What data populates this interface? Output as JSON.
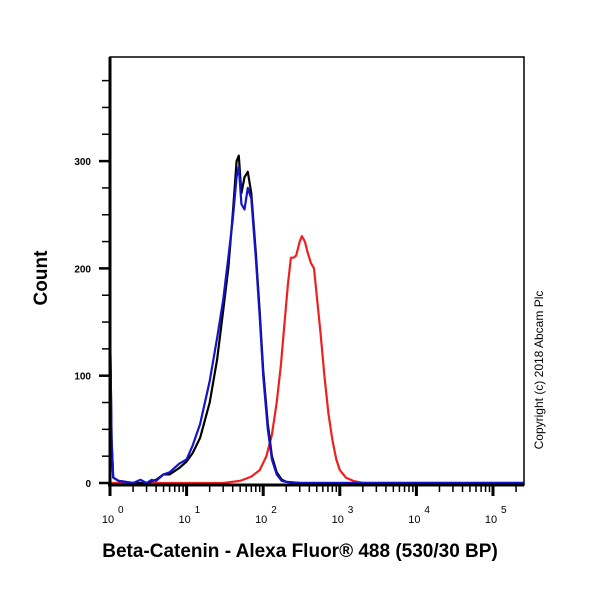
{
  "chart_data": {
    "type": "line",
    "title": "",
    "xlabel": "Beta-Catenin - Alexa Fluor® 488 (530/30 BP)",
    "ylabel": "Count",
    "xscale": "log",
    "xlim": [
      1,
      250000
    ],
    "ylim": [
      0,
      400
    ],
    "x_ticks": [
      {
        "value": 1,
        "label_base": "10",
        "label_exp": "0"
      },
      {
        "value": 10,
        "label_base": "10",
        "label_exp": "1"
      },
      {
        "value": 100,
        "label_base": "10",
        "label_exp": "2"
      },
      {
        "value": 1000,
        "label_base": "10",
        "label_exp": "3"
      },
      {
        "value": 10000,
        "label_base": "10",
        "label_exp": "4"
      },
      {
        "value": 100000,
        "label_base": "10",
        "label_exp": "5"
      }
    ],
    "y_ticks": [
      {
        "value": 0,
        "label": "0"
      },
      {
        "value": 100,
        "label": "100"
      },
      {
        "value": 200,
        "label": "200"
      },
      {
        "value": 300,
        "label": "300"
      }
    ],
    "grid": false,
    "legend": null,
    "annotation": "Copyright (c) 2018 Abcam Plc",
    "series": [
      {
        "name": "black",
        "color": "#000000",
        "points": [
          [
            1.0,
            150
          ],
          [
            1.05,
            40
          ],
          [
            1.1,
            5
          ],
          [
            1.3,
            2
          ],
          [
            2,
            0
          ],
          [
            3,
            0
          ],
          [
            4,
            3
          ],
          [
            5,
            8
          ],
          [
            6,
            8
          ],
          [
            8,
            14
          ],
          [
            10,
            20
          ],
          [
            12,
            28
          ],
          [
            15,
            42
          ],
          [
            20,
            75
          ],
          [
            25,
            115
          ],
          [
            30,
            160
          ],
          [
            35,
            200
          ],
          [
            40,
            250
          ],
          [
            45,
            300
          ],
          [
            48,
            305
          ],
          [
            52,
            270
          ],
          [
            57,
            285
          ],
          [
            63,
            290
          ],
          [
            70,
            270
          ],
          [
            80,
            215
          ],
          [
            90,
            160
          ],
          [
            100,
            105
          ],
          [
            115,
            55
          ],
          [
            130,
            25
          ],
          [
            150,
            10
          ],
          [
            175,
            3
          ],
          [
            200,
            1
          ],
          [
            300,
            0
          ],
          [
            1000,
            0
          ],
          [
            10000,
            0
          ],
          [
            250000,
            0
          ]
        ]
      },
      {
        "name": "blue",
        "color": "#1414c8",
        "points": [
          [
            1.0,
            150
          ],
          [
            1.05,
            40
          ],
          [
            1.1,
            5
          ],
          [
            1.3,
            2
          ],
          [
            2,
            0
          ],
          [
            2.5,
            3
          ],
          [
            3,
            0
          ],
          [
            3.5,
            3
          ],
          [
            4,
            2
          ],
          [
            5,
            8
          ],
          [
            6,
            10
          ],
          [
            8,
            18
          ],
          [
            10,
            22
          ],
          [
            12,
            35
          ],
          [
            15,
            55
          ],
          [
            20,
            95
          ],
          [
            25,
            135
          ],
          [
            30,
            170
          ],
          [
            35,
            210
          ],
          [
            40,
            245
          ],
          [
            45,
            285
          ],
          [
            48,
            295
          ],
          [
            52,
            260
          ],
          [
            57,
            255
          ],
          [
            63,
            275
          ],
          [
            70,
            265
          ],
          [
            80,
            210
          ],
          [
            90,
            155
          ],
          [
            100,
            100
          ],
          [
            115,
            50
          ],
          [
            130,
            22
          ],
          [
            150,
            8
          ],
          [
            175,
            2
          ],
          [
            200,
            1
          ],
          [
            300,
            0
          ],
          [
            1000,
            0
          ],
          [
            10000,
            0
          ],
          [
            250000,
            0
          ]
        ]
      },
      {
        "name": "red",
        "color": "#ee2020",
        "points": [
          [
            1.0,
            0
          ],
          [
            10,
            0
          ],
          [
            30,
            0
          ],
          [
            50,
            2
          ],
          [
            70,
            6
          ],
          [
            90,
            12
          ],
          [
            110,
            25
          ],
          [
            130,
            45
          ],
          [
            150,
            75
          ],
          [
            170,
            110
          ],
          [
            190,
            150
          ],
          [
            210,
            185
          ],
          [
            230,
            210
          ],
          [
            250,
            210
          ],
          [
            270,
            212
          ],
          [
            300,
            225
          ],
          [
            320,
            230
          ],
          [
            350,
            225
          ],
          [
            380,
            215
          ],
          [
            420,
            205
          ],
          [
            460,
            200
          ],
          [
            500,
            175
          ],
          [
            560,
            140
          ],
          [
            630,
            100
          ],
          [
            710,
            65
          ],
          [
            800,
            40
          ],
          [
            900,
            22
          ],
          [
            1000,
            12
          ],
          [
            1200,
            5
          ],
          [
            1500,
            2
          ],
          [
            2000,
            0
          ],
          [
            10000,
            0
          ],
          [
            250000,
            0
          ]
        ]
      }
    ]
  }
}
